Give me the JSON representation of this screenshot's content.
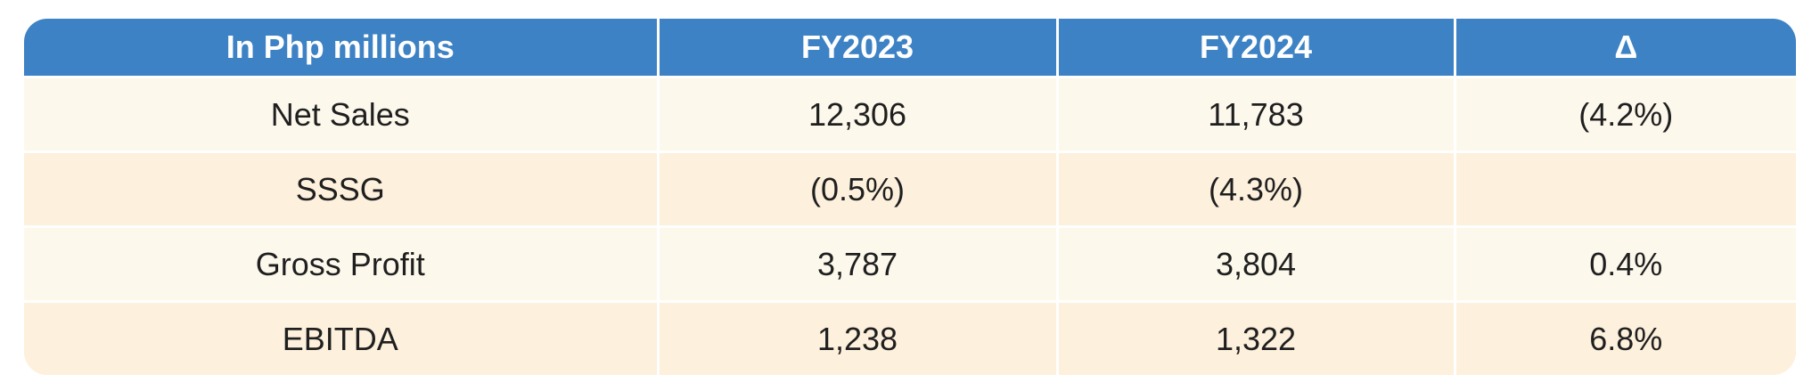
{
  "table": {
    "headers": [
      "In Php millions",
      "FY2023",
      "FY2024",
      "Δ"
    ],
    "rows": [
      [
        "Net Sales",
        "12,306",
        "11,783",
        "(4.2%)"
      ],
      [
        "SSSG",
        "(0.5%)",
        "(4.3%)",
        ""
      ],
      [
        "Gross Profit",
        "3,787",
        "3,804",
        "0.4%"
      ],
      [
        "EBITDA",
        "1,238",
        "1,322",
        "6.8%"
      ]
    ],
    "colors": {
      "header_bg": "#3d82c4",
      "header_text": "#ffffff",
      "row_odd_bg": "#fdf8ec",
      "row_even_bg": "#fdf0dc",
      "text": "#1f1f1f"
    }
  }
}
